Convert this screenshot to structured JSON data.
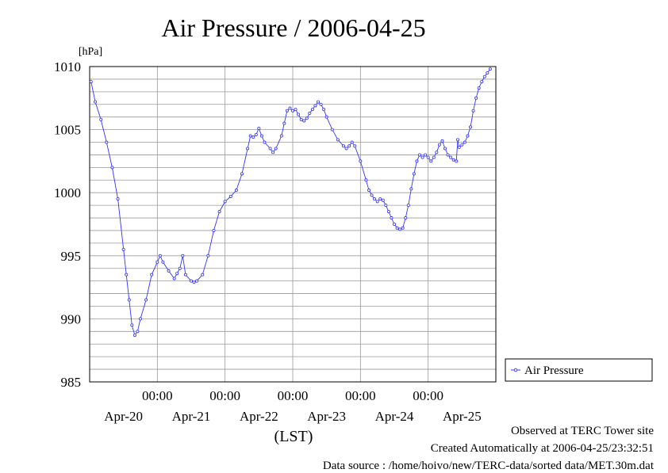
{
  "page": {
    "observed_note": "Observed at TERC Tower site",
    "created_note": "Created Automatically at 2006-04-25/23:32:51",
    "source_note": "Data source : /home/hoivo/new/TERC-data/sorted  data/MET.30m.dat"
  },
  "chart_data": {
    "type": "line",
    "title": "Air Pressure / 2006-04-25",
    "ylabel": "[hPa]",
    "xlabel": "(LST)",
    "ylim": [
      985,
      1010
    ],
    "yticks": [
      985,
      990,
      995,
      1000,
      1005,
      1010
    ],
    "xlim_hours": [
      0,
      144
    ],
    "x_start": "2006-04-19 00:00",
    "x_ticks": [
      {
        "hour": 24,
        "time": "00:00",
        "date": "Apr-20"
      },
      {
        "hour": 48,
        "time": "00:00",
        "date": "Apr-21"
      },
      {
        "hour": 72,
        "time": "00:00",
        "date": "Apr-22"
      },
      {
        "hour": 96,
        "time": "00:00",
        "date": "Apr-23"
      },
      {
        "hour": 120,
        "time": "00:00",
        "date": "Apr-24"
      },
      {
        "hour": 144,
        "time": "",
        "date": "Apr-25"
      }
    ],
    "grid": true,
    "legend_position": "right",
    "series": [
      {
        "name": "Air Pressure",
        "color": "#3333ff",
        "marker": "open-circle",
        "points": [
          [
            0.5,
            1008.8
          ],
          [
            2,
            1007.2
          ],
          [
            4,
            1005.8
          ],
          [
            6,
            1004.0
          ],
          [
            8,
            1002.0
          ],
          [
            10,
            999.5
          ],
          [
            12,
            995.5
          ],
          [
            13,
            993.5
          ],
          [
            14,
            991.5
          ],
          [
            15,
            989.5
          ],
          [
            16,
            988.7
          ],
          [
            17,
            989.0
          ],
          [
            18,
            990.0
          ],
          [
            20,
            991.5
          ],
          [
            22,
            993.5
          ],
          [
            24,
            994.5
          ],
          [
            25,
            995.0
          ],
          [
            26,
            994.5
          ],
          [
            28,
            993.8
          ],
          [
            30,
            993.2
          ],
          [
            31,
            993.6
          ],
          [
            32,
            994.0
          ],
          [
            33,
            995.0
          ],
          [
            34,
            993.5
          ],
          [
            36,
            993.0
          ],
          [
            37,
            992.9
          ],
          [
            38,
            993.0
          ],
          [
            40,
            993.5
          ],
          [
            42,
            995.0
          ],
          [
            44,
            997.0
          ],
          [
            46,
            998.5
          ],
          [
            48,
            999.3
          ],
          [
            50,
            999.7
          ],
          [
            52,
            1000.2
          ],
          [
            54,
            1001.5
          ],
          [
            56,
            1003.5
          ],
          [
            57,
            1004.5
          ],
          [
            58,
            1004.4
          ],
          [
            59,
            1004.6
          ],
          [
            60,
            1005.1
          ],
          [
            61,
            1004.5
          ],
          [
            62,
            1004.0
          ],
          [
            64,
            1003.5
          ],
          [
            65,
            1003.2
          ],
          [
            66,
            1003.5
          ],
          [
            68,
            1004.5
          ],
          [
            69,
            1005.5
          ],
          [
            70,
            1006.5
          ],
          [
            71,
            1006.7
          ],
          [
            72,
            1006.5
          ],
          [
            73,
            1006.6
          ],
          [
            74,
            1006.2
          ],
          [
            75,
            1005.8
          ],
          [
            76,
            1005.7
          ],
          [
            77,
            1005.9
          ],
          [
            78,
            1006.3
          ],
          [
            79,
            1006.6
          ],
          [
            80,
            1006.9
          ],
          [
            81,
            1007.2
          ],
          [
            82,
            1007.0
          ],
          [
            83,
            1006.6
          ],
          [
            84,
            1006.0
          ],
          [
            86,
            1005.0
          ],
          [
            88,
            1004.2
          ],
          [
            90,
            1003.7
          ],
          [
            91,
            1003.5
          ],
          [
            92,
            1003.7
          ],
          [
            93,
            1004.0
          ],
          [
            94,
            1003.7
          ],
          [
            96,
            1002.5
          ],
          [
            98,
            1001.0
          ],
          [
            99,
            1000.2
          ],
          [
            100,
            999.8
          ],
          [
            101,
            999.5
          ],
          [
            102,
            999.3
          ],
          [
            103,
            999.5
          ],
          [
            104,
            999.4
          ],
          [
            105,
            999.0
          ],
          [
            106,
            998.5
          ],
          [
            107,
            998.0
          ],
          [
            108,
            997.5
          ],
          [
            109,
            997.2
          ],
          [
            110,
            997.1
          ],
          [
            111,
            997.2
          ],
          [
            112,
            998.0
          ],
          [
            113,
            999.0
          ],
          [
            114,
            1000.3
          ],
          [
            115,
            1001.5
          ],
          [
            116,
            1002.5
          ],
          [
            117,
            1003.0
          ],
          [
            118,
            1002.8
          ],
          [
            119,
            1003.0
          ],
          [
            120,
            1002.8
          ],
          [
            121,
            1002.5
          ],
          [
            122,
            1002.8
          ],
          [
            123,
            1003.2
          ],
          [
            124,
            1003.8
          ],
          [
            125,
            1004.1
          ],
          [
            126,
            1003.5
          ],
          [
            127,
            1003.0
          ],
          [
            128,
            1002.8
          ],
          [
            129,
            1002.6
          ],
          [
            130,
            1002.5
          ],
          [
            130.5,
            1004.2
          ],
          [
            131,
            1003.6
          ],
          [
            132,
            1003.8
          ],
          [
            133,
            1004.0
          ],
          [
            134,
            1004.5
          ],
          [
            135,
            1005.2
          ],
          [
            136,
            1006.5
          ],
          [
            137,
            1007.5
          ],
          [
            138,
            1008.3
          ],
          [
            139,
            1008.8
          ],
          [
            140,
            1009.2
          ],
          [
            141,
            1009.5
          ],
          [
            142,
            1009.8
          ]
        ]
      }
    ]
  }
}
